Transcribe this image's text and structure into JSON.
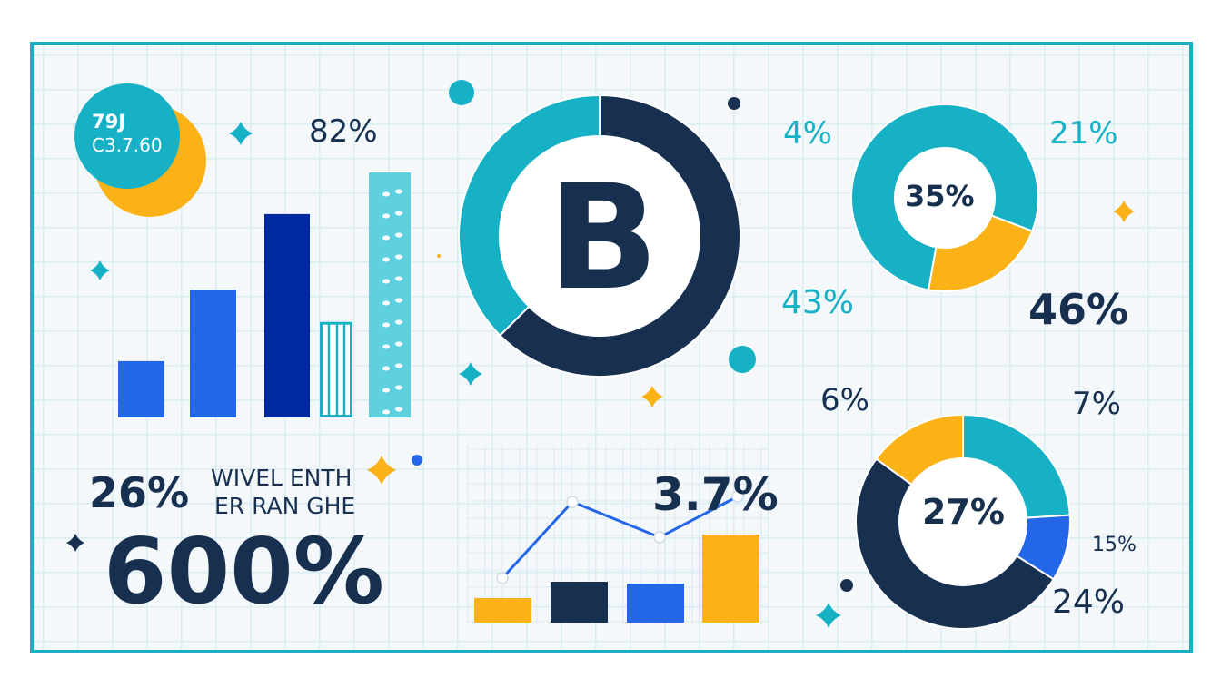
{
  "colors": {
    "frame": "#1aafc3",
    "navy": "#17304f",
    "teal": "#17b1c6",
    "orange": "#fbb216",
    "blue": "#2366e8",
    "deep_blue": "#0029a0",
    "light_teal": "#5fd0de"
  },
  "badge": {
    "line1": "79J",
    "line2": "C3.7.60"
  },
  "labels": {
    "bar_top": "82%",
    "donut_letter": "B",
    "stat_small": "26%",
    "caption_line1": "WIVEL ENTH",
    "caption_line2": "ER RAN GHE",
    "stat_big": "600%",
    "line_label": "3.7%"
  },
  "chart_data": [
    {
      "type": "bar",
      "values": [
        23,
        52,
        83,
        39,
        100
      ],
      "colors": [
        "#2366e8",
        "#2366e8",
        "#0029a0",
        "outlined-teal",
        "#5fd0de"
      ],
      "grid": true
    },
    {
      "type": "pie",
      "slices": [
        {
          "value": 62.5,
          "color": "#17304f"
        },
        {
          "value": 37.5,
          "color": "#17b1c6"
        }
      ],
      "center_label": "B"
    },
    {
      "type": "pie",
      "slices": [
        {
          "value": 78,
          "color": "#17b1c6"
        },
        {
          "value": 22,
          "color": "#fbb216"
        }
      ],
      "center_label": "35%",
      "labels": [
        "4%",
        "21%",
        "43%",
        "46%"
      ]
    },
    {
      "type": "pie",
      "slices": [
        {
          "value": 24,
          "color": "#17b1c6"
        },
        {
          "value": 10,
          "color": "#2366e8"
        },
        {
          "value": 51,
          "color": "#17304f"
        },
        {
          "value": 15,
          "color": "#fbb216"
        }
      ],
      "center_label": "27%",
      "labels": [
        "6%",
        "7%",
        "15%",
        "24%"
      ]
    },
    {
      "type": "bar",
      "values": [
        27,
        45,
        43,
        97
      ],
      "colors": [
        "#fbb216",
        "#17304f",
        "#2366e8",
        "#fbb216"
      ],
      "line": {
        "values": [
          49,
          133,
          94,
          139
        ],
        "color": "#2366e8"
      },
      "annotation": "3.7%",
      "grid": true
    }
  ]
}
